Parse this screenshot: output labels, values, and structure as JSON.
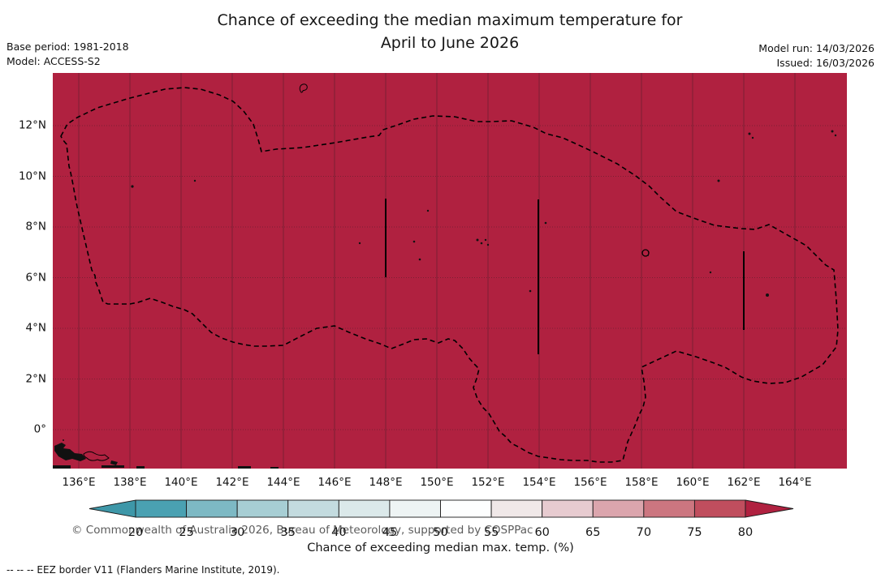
{
  "header": {
    "title_line1": "Chance of exceeding the median maximum temperature for",
    "title_line2": "April to June 2026",
    "base_period": "Base period: 1981-2018",
    "model": "Model: ACCESS-S2",
    "model_run": "Model run: 14/03/2026",
    "issued": "Issued: 16/03/2026"
  },
  "map": {
    "watermark": "© Commonwealth of Australia 2026, Bureau of Meteorology, supported by COSPPac"
  },
  "axes": {
    "x_tick_labels": [
      "136°E",
      "138°E",
      "140°E",
      "142°E",
      "144°E",
      "146°E",
      "148°E",
      "150°E",
      "152°E",
      "154°E",
      "156°E",
      "158°E",
      "160°E",
      "162°E",
      "164°E"
    ],
    "y_tick_labels": [
      "12°N",
      "10°N",
      "8°N",
      "6°N",
      "4°N",
      "2°N",
      "0°"
    ]
  },
  "colorbar": {
    "label": "Chance of exceeding median max. temp. (%)",
    "tick_labels": [
      "20",
      "25",
      "30",
      "35",
      "40",
      "45",
      "50",
      "55",
      "60",
      "65",
      "70",
      "75",
      "80"
    ],
    "segment_colors": [
      "#4aa1b2",
      "#7db9c4",
      "#a7ced4",
      "#c3dbdf",
      "#dbe9ea",
      "#eef4f4",
      "#fdfefe",
      "#f0e8e8",
      "#e7cbd0",
      "#dba5ad",
      "#cc7680",
      "#c04e5e"
    ],
    "under_arrow_color": "#3e97a8",
    "over_arrow_color": "#b02140",
    "outline_color": "#1a1a1a"
  },
  "footer": {
    "eez_note": "--  --  -- EEZ border V11 (Flanders Marine Institute, 2019)."
  },
  "colors": {
    "map_fill": "#b02140",
    "eez_border": "#000000",
    "gridline": "rgba(60,30,35,0.45)"
  },
  "chart_data": {
    "type": "heatmap",
    "title": "Chance of exceeding the median maximum temperature for April to June 2026",
    "region": {
      "lon_min": 135.0,
      "lon_max": 166.0,
      "lat_min": -1.5,
      "lat_max": 14.1
    },
    "x_ticks_deg_east": [
      136,
      138,
      140,
      142,
      144,
      146,
      148,
      150,
      152,
      154,
      156,
      158,
      160,
      162,
      164
    ],
    "y_ticks_deg_north": [
      12,
      10,
      8,
      6,
      4,
      2,
      0
    ],
    "uniform_value": ">80",
    "units": "%",
    "scale": {
      "min": 20,
      "max": 80,
      "step": 5,
      "open_ended_low": true,
      "open_ended_high": true
    },
    "legend_label": "Chance of exceeding median max. temp. (%)",
    "notes": "Entire mapped EEZ region is shaded in the >80% class (dark red); dashed lines are EEZ borders"
  }
}
